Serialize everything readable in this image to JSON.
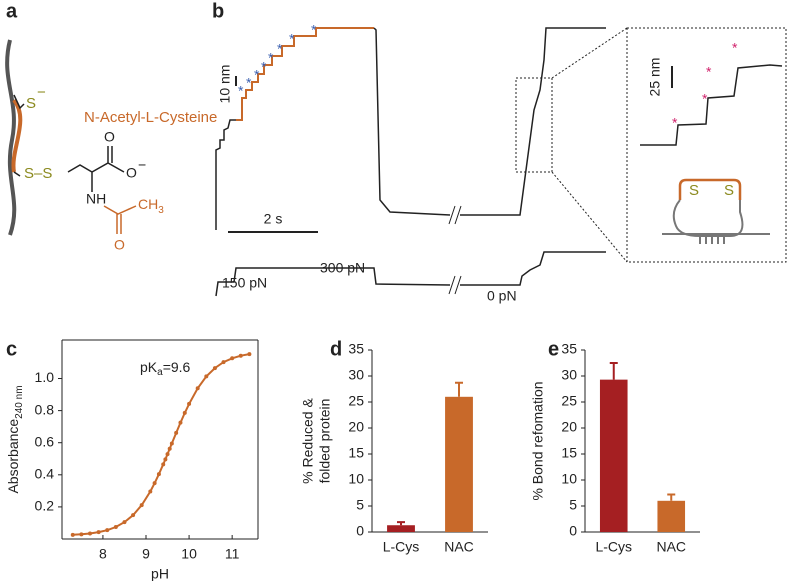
{
  "figure": {
    "panel_labels": [
      "a",
      "b",
      "c",
      "d",
      "e"
    ],
    "panel_a": {
      "thiolate": "S",
      "charge": "−",
      "disulfide": "S–S",
      "molecule": "N-Acetyl-L-Cysteine",
      "carbonyl_o": "O",
      "carboxylate_o": "O",
      "amine": "NH",
      "methyl": "CH",
      "methyl_sub": "3",
      "acetyl_o": "O"
    },
    "panel_b": {
      "scale_height": "10 nm",
      "scale_time": "2 s",
      "force_low": "150 pN",
      "force_high": "300 pN",
      "force_zero": "0 pN",
      "inset_scale": "25 nm",
      "inset_sulfur": "S",
      "step_marker": "*"
    }
  },
  "chart_data": [
    {
      "type": "line",
      "box": true,
      "color": "#c8692a",
      "annotation": [
        "pK",
        "a",
        "=9.6"
      ],
      "xlabel": "pH",
      "ylabel": [
        "Absorbance",
        "240 nm"
      ],
      "x": [
        7.3,
        7.5,
        7.7,
        7.9,
        8.1,
        8.3,
        8.5,
        8.7,
        8.9,
        9.1,
        9.2,
        9.3,
        9.4,
        9.45,
        9.5,
        9.55,
        9.6,
        9.7,
        9.8,
        9.9,
        10.0,
        10.2,
        10.4,
        10.6,
        10.8,
        11.0,
        11.2,
        11.4
      ],
      "values": [
        0.026,
        0.029,
        0.034,
        0.043,
        0.055,
        0.075,
        0.105,
        0.149,
        0.211,
        0.296,
        0.348,
        0.404,
        0.465,
        0.496,
        0.529,
        0.562,
        0.595,
        0.661,
        0.725,
        0.786,
        0.842,
        0.939,
        1.013,
        1.065,
        1.102,
        1.126,
        1.142,
        1.152
      ],
      "xlim": [
        7.05,
        11.6
      ],
      "xticks": [
        8,
        9,
        10,
        11
      ],
      "ylim": [
        0,
        1.24
      ],
      "yticks": [
        0.2,
        0.4,
        0.6,
        0.8,
        {
          "value": 1,
          "label": "1.0"
        }
      ]
    },
    {
      "type": "bar",
      "box": false,
      "ylabel": [
        "% Reduced &",
        "folded protein"
      ],
      "categories": [
        "L-Cys",
        "NAC"
      ],
      "values": [
        1.3,
        26
      ],
      "errors": [
        0.6,
        2.7
      ],
      "colors": [
        "#a51f22",
        "#c8692a"
      ],
      "ylim": [
        0,
        35
      ],
      "yticks": [
        0,
        5,
        10,
        15,
        20,
        25,
        30,
        35
      ]
    },
    {
      "type": "bar",
      "box": false,
      "ylabel": [
        "% Bond refomation"
      ],
      "categories": [
        "L-Cys",
        "NAC"
      ],
      "values": [
        29.3,
        6
      ],
      "errors": [
        3.2,
        1.2
      ],
      "colors": [
        "#a51f22",
        "#c8692a"
      ],
      "ylim": [
        0,
        35
      ],
      "yticks": [
        0,
        5,
        10,
        15,
        20,
        25,
        30,
        35
      ]
    }
  ]
}
